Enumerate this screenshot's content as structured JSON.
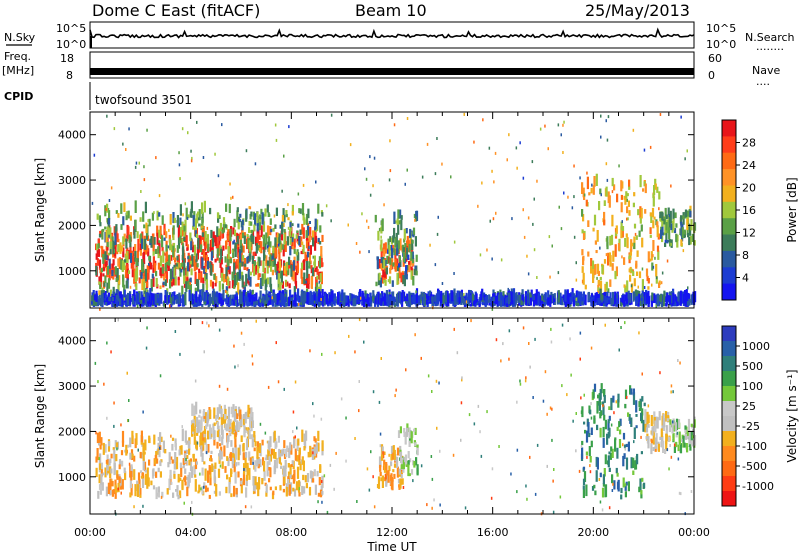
{
  "header": {
    "station": "Dome C East (fitACF)",
    "beam": "Beam 10",
    "date": "25/May/2013"
  },
  "strips": {
    "nsky_label": "N.Sky",
    "nsearch_label": "N.Search",
    "nsky_ticks": [
      "10^5",
      "10^0"
    ],
    "nsearch_ticks": [
      "10^5",
      "10^0"
    ],
    "freq_label_1": "Freq.",
    "freq_label_2": "[MHz]",
    "freq_ticks": [
      "18",
      "8"
    ],
    "nave_label": "Nave",
    "nave_ticks": [
      "60",
      "0"
    ],
    "cpid_label": "CPID",
    "cpid_value": "twofsound 3501",
    "dots": "........",
    "dots_short": "...."
  },
  "panels": {
    "ylabel": "Slant Range [km]",
    "xlabel": "Time UT",
    "yticks": [
      "4000",
      "3000",
      "2000",
      "1000"
    ],
    "xticks": [
      "00:00",
      "04:00",
      "08:00",
      "12:00",
      "16:00",
      "20:00",
      "00:00"
    ]
  },
  "colorbars": {
    "power": {
      "label": "Power [dB]",
      "ticks": [
        "28",
        "24",
        "20",
        "16",
        "12",
        "8",
        "4"
      ],
      "colors_top_to_bottom": [
        "#e8151a",
        "#ff3d1a",
        "#ff6a14",
        "#ff9226",
        "#f2b01e",
        "#a0c83c",
        "#5aa046",
        "#3c7c5a",
        "#2a5aa0",
        "#1c3cd2",
        "#1414f0"
      ]
    },
    "velocity": {
      "label": "Velocity [m s⁻¹]",
      "ticks": [
        "1000",
        "500",
        "100",
        "25",
        "-25",
        "-100",
        "-500",
        "-1000"
      ],
      "colors_top_to_bottom": [
        "#2d3cbe",
        "#2860a8",
        "#2f7f7a",
        "#3aa04a",
        "#74c83a",
        "#c8c8c8",
        "#c0c0c0",
        "#f2b01e",
        "#ff8a1e",
        "#ff6a14",
        "#ff3c14",
        "#ee1414"
      ]
    }
  },
  "chart_data": [
    {
      "type": "line",
      "panel": "N.Sky / N.Search",
      "x_range_hours": [
        0,
        24
      ],
      "y_scale": "log",
      "note": "noise level and search noise traces across the day"
    },
    {
      "type": "line",
      "panel": "Freq. / Nave",
      "x_range_hours": [
        0,
        24
      ],
      "freq_ylim_mhz": [
        8,
        18
      ],
      "nave_ylim": [
        0,
        60
      ]
    },
    {
      "type": "heatmap",
      "panel": "Power",
      "x_label": "Time UT",
      "y_label": "Slant Range [km]",
      "x_range_hours": [
        0,
        24
      ],
      "ylim_km": [
        180,
        4500
      ],
      "color_scale": "Power [dB]",
      "zlim": [
        0,
        30
      ],
      "echo_regions": [
        {
          "t_start": 0.2,
          "t_end": 9.2,
          "r_min": 600,
          "r_max": 1800,
          "power_db": 26
        },
        {
          "t_start": 0.2,
          "t_end": 9.2,
          "r_min": 400,
          "r_max": 2300,
          "power_db": 12
        },
        {
          "t_start": 11.4,
          "t_end": 12.8,
          "r_min": 700,
          "r_max": 1500,
          "power_db": 24
        },
        {
          "t_start": 11.3,
          "t_end": 13.0,
          "r_min": 600,
          "r_max": 2200,
          "power_db": 10
        },
        {
          "t_start": 19.5,
          "t_end": 22.6,
          "r_min": 500,
          "r_max": 2900,
          "power_db": 18
        },
        {
          "t_start": 22.6,
          "t_end": 24.0,
          "r_min": 1500,
          "r_max": 2200,
          "power_db": 12
        },
        {
          "t_start": 0.0,
          "t_end": 24.0,
          "r_min": 200,
          "r_max": 350,
          "power_db": 4
        }
      ]
    },
    {
      "type": "heatmap",
      "panel": "Velocity",
      "x_label": "Time UT",
      "y_label": "Slant Range [km]",
      "x_range_hours": [
        0,
        24
      ],
      "ylim_km": [
        180,
        4500
      ],
      "color_scale": "Velocity [m s⁻¹]",
      "zlim": [
        -1000,
        1000
      ],
      "echo_regions": [
        {
          "t_start": 0.2,
          "t_end": 9.2,
          "r_min": 500,
          "r_max": 1800,
          "velocity": -200
        },
        {
          "t_start": 4.0,
          "t_end": 6.5,
          "r_min": 1800,
          "r_max": 2400,
          "velocity": -100
        },
        {
          "t_start": 11.4,
          "t_end": 12.4,
          "r_min": 700,
          "r_max": 1500,
          "velocity": -300
        },
        {
          "t_start": 12.2,
          "t_end": 13.0,
          "r_min": 1000,
          "r_max": 2000,
          "velocity": 150
        },
        {
          "t_start": 19.5,
          "t_end": 22.0,
          "r_min": 500,
          "r_max": 2900,
          "velocity": 500
        },
        {
          "t_start": 22.0,
          "t_end": 23.0,
          "r_min": 1500,
          "r_max": 2300,
          "velocity": -100
        },
        {
          "t_start": 23.0,
          "t_end": 24.0,
          "r_min": 1500,
          "r_max": 2100,
          "velocity": 150
        }
      ]
    }
  ]
}
